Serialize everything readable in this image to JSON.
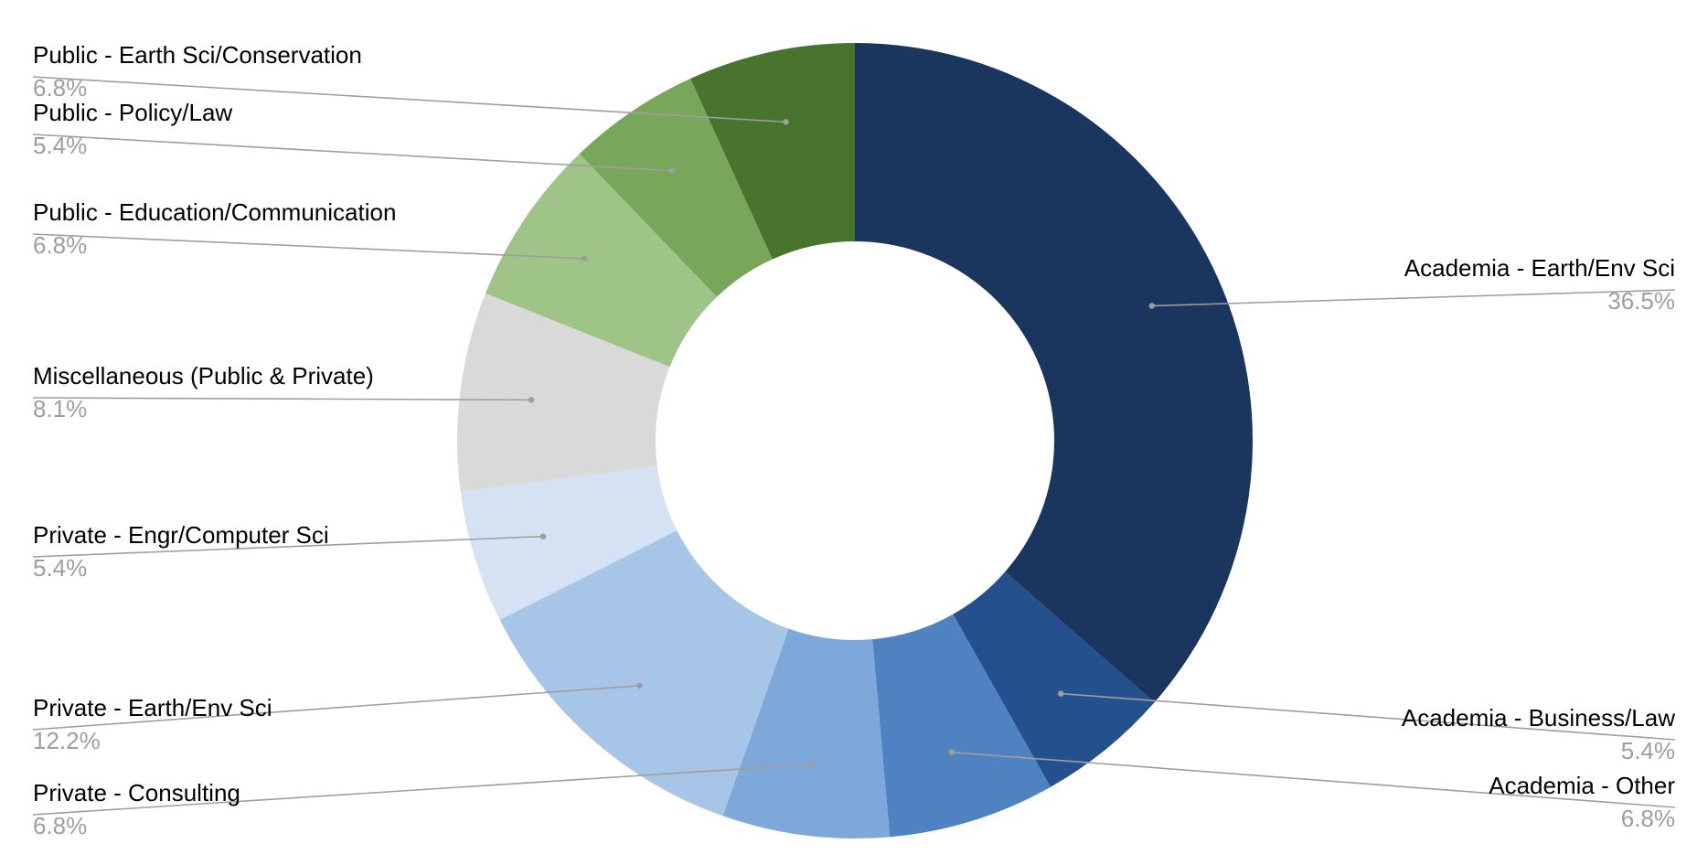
{
  "chart_data": {
    "type": "pie",
    "donut": true,
    "title": "",
    "legend": "none",
    "slices": [
      {
        "label": "Academia - Earth/Env Sci",
        "value": 36.5,
        "value_label": "36.5%",
        "color": "#1a365f",
        "label_side": "right"
      },
      {
        "label": "Academia - Business/Law",
        "value": 5.4,
        "value_label": "5.4%",
        "color": "#24518d",
        "label_side": "right"
      },
      {
        "label": "Academia - Other",
        "value": 6.8,
        "value_label": "6.8%",
        "color": "#4f82c1",
        "label_side": "right"
      },
      {
        "label": "",
        "value": 6.8,
        "value_label": "",
        "color": "#7ea8da",
        "label_side": "none"
      },
      {
        "label": "Private - Earth/Env Sci",
        "value": 12.2,
        "value_label": "12.2%",
        "color": "#a7c5e6",
        "label_side": "left"
      },
      {
        "label": "Private - Engr/Computer Sci",
        "value": 5.4,
        "value_label": "5.4%",
        "color": "#d4e2f3",
        "label_side": "left"
      },
      {
        "label": "Miscellaneous (Public & Private)",
        "value": 8.1,
        "value_label": "8.1%",
        "color": "#d9d9d9",
        "label_side": "left"
      },
      {
        "label": "Public - Education/Communication",
        "value": 6.8,
        "value_label": "6.8%",
        "color": "#9fc488",
        "label_side": "left"
      },
      {
        "label": "Public - Policy/Law",
        "value": 5.4,
        "value_label": "5.4%",
        "color": "#78a65a",
        "label_side": "left"
      },
      {
        "label": "Public - Earth Sci/Conservation",
        "value": 6.8,
        "value_label": "6.8%",
        "color": "#49742d",
        "label_side": "left"
      }
    ],
    "extra_labels": [
      {
        "label": "Private - Consulting",
        "value_label": "6.8%",
        "slice_index": 3
      }
    ]
  }
}
